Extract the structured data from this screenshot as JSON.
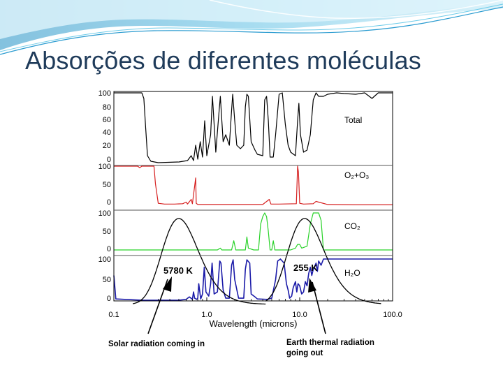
{
  "slide": {
    "title": "Absorções de diferentes moléculas"
  },
  "colors": {
    "title": "#1f3b5a",
    "total": "#000000",
    "o2o3": "#d62020",
    "co2": "#28d228",
    "h2o": "#1a1aa8",
    "blackbody": "#000000"
  },
  "chart_data": {
    "type": "line",
    "x_scale": "log",
    "xlim": [
      0.1,
      100.0
    ],
    "x_ticks": [
      "0.1",
      "1.0",
      "10.0",
      "100.0"
    ],
    "xlabel": "Wavelength (microns)",
    "panels": [
      {
        "key": "total",
        "label": "Total",
        "yticks": [
          "100",
          "80",
          "60",
          "40",
          "20",
          "0"
        ],
        "ylim": [
          0,
          100
        ],
        "points": [
          [
            0.1,
            100
          ],
          [
            0.18,
            100
          ],
          [
            0.2,
            100
          ],
          [
            0.21,
            92
          ],
          [
            0.22,
            50
          ],
          [
            0.23,
            10
          ],
          [
            0.25,
            2
          ],
          [
            0.3,
            0
          ],
          [
            0.5,
            1
          ],
          [
            0.62,
            3
          ],
          [
            0.68,
            10
          ],
          [
            0.72,
            3
          ],
          [
            0.76,
            25
          ],
          [
            0.8,
            5
          ],
          [
            0.85,
            30
          ],
          [
            0.9,
            8
          ],
          [
            0.95,
            60
          ],
          [
            1.0,
            10
          ],
          [
            1.1,
            40
          ],
          [
            1.15,
            95
          ],
          [
            1.25,
            15
          ],
          [
            1.35,
            70
          ],
          [
            1.4,
            95
          ],
          [
            1.5,
            30
          ],
          [
            1.6,
            40
          ],
          [
            1.75,
            25
          ],
          [
            1.85,
            75
          ],
          [
            1.9,
            98
          ],
          [
            2.0,
            60
          ],
          [
            2.1,
            25
          ],
          [
            2.3,
            20
          ],
          [
            2.5,
            25
          ],
          [
            2.6,
            80
          ],
          [
            2.7,
            98
          ],
          [
            2.8,
            95
          ],
          [
            3.0,
            30
          ],
          [
            3.3,
            18
          ],
          [
            3.5,
            12
          ],
          [
            4.0,
            10
          ],
          [
            4.2,
            90
          ],
          [
            4.4,
            95
          ],
          [
            4.6,
            60
          ],
          [
            4.8,
            8
          ],
          [
            5.2,
            8
          ],
          [
            5.5,
            40
          ],
          [
            6.0,
            98
          ],
          [
            6.5,
            100
          ],
          [
            7.0,
            55
          ],
          [
            7.5,
            25
          ],
          [
            8.0,
            15
          ],
          [
            9.0,
            10
          ],
          [
            9.5,
            60
          ],
          [
            9.8,
            85
          ],
          [
            10.2,
            40
          ],
          [
            11.0,
            15
          ],
          [
            12.0,
            18
          ],
          [
            13.0,
            40
          ],
          [
            14.0,
            90
          ],
          [
            15.0,
            100
          ],
          [
            16.0,
            95
          ],
          [
            18.0,
            95
          ],
          [
            20.0,
            98
          ],
          [
            25.0,
            100
          ],
          [
            30.0,
            99
          ],
          [
            40.0,
            98
          ],
          [
            50.0,
            100
          ],
          [
            60.0,
            92
          ],
          [
            70.0,
            100
          ],
          [
            100.0,
            100
          ]
        ]
      },
      {
        "key": "o2o3",
        "label": "O₂+O₃",
        "yticks": [
          "100",
          "50",
          "0"
        ],
        "ylim": [
          0,
          100
        ],
        "points": [
          [
            0.1,
            100
          ],
          [
            0.18,
            100
          ],
          [
            0.19,
            96
          ],
          [
            0.2,
            100
          ],
          [
            0.27,
            100
          ],
          [
            0.28,
            55
          ],
          [
            0.3,
            5
          ],
          [
            0.35,
            3
          ],
          [
            0.45,
            3
          ],
          [
            0.55,
            4
          ],
          [
            0.6,
            8
          ],
          [
            0.62,
            3
          ],
          [
            0.68,
            15
          ],
          [
            0.7,
            4
          ],
          [
            0.76,
            70
          ],
          [
            0.77,
            5
          ],
          [
            0.8,
            2
          ],
          [
            2.0,
            2
          ],
          [
            4.0,
            2
          ],
          [
            4.7,
            15
          ],
          [
            4.9,
            3
          ],
          [
            6.0,
            3
          ],
          [
            9.2,
            4
          ],
          [
            9.5,
            100
          ],
          [
            9.7,
            85
          ],
          [
            10.0,
            5
          ],
          [
            11.0,
            3
          ],
          [
            14.0,
            4
          ],
          [
            15.0,
            10
          ],
          [
            16.0,
            8
          ],
          [
            20.0,
            2
          ],
          [
            40.0,
            1
          ],
          [
            100.0,
            1
          ]
        ]
      },
      {
        "key": "co2",
        "label": "CO₂",
        "yticks": [
          "100",
          "50",
          "0"
        ],
        "ylim": [
          0,
          100
        ],
        "points": [
          [
            0.1,
            0
          ],
          [
            1.3,
            0
          ],
          [
            1.4,
            5
          ],
          [
            1.45,
            0
          ],
          [
            1.85,
            0
          ],
          [
            1.95,
            25
          ],
          [
            2.05,
            0
          ],
          [
            2.6,
            0
          ],
          [
            2.7,
            35
          ],
          [
            2.8,
            5
          ],
          [
            3.2,
            0
          ],
          [
            3.6,
            0
          ],
          [
            3.8,
            70
          ],
          [
            4.0,
            90
          ],
          [
            4.2,
            100
          ],
          [
            4.4,
            90
          ],
          [
            4.6,
            50
          ],
          [
            4.8,
            0
          ],
          [
            5.0,
            0
          ],
          [
            5.2,
            25
          ],
          [
            5.4,
            0
          ],
          [
            7.0,
            0
          ],
          [
            8.0,
            0
          ],
          [
            9.0,
            5
          ],
          [
            9.5,
            15
          ],
          [
            10.0,
            15
          ],
          [
            10.5,
            5
          ],
          [
            12.0,
            10
          ],
          [
            13.0,
            70
          ],
          [
            14.0,
            100
          ],
          [
            15.0,
            100
          ],
          [
            16.0,
            100
          ],
          [
            17.0,
            80
          ],
          [
            18.0,
            0
          ],
          [
            100.0,
            0
          ]
        ]
      },
      {
        "key": "h2o",
        "label": "H₂O",
        "yticks": [
          "100",
          "50",
          "0"
        ],
        "ylim": [
          0,
          100
        ],
        "points": [
          [
            0.1,
            60
          ],
          [
            0.105,
            3
          ],
          [
            0.2,
            0
          ],
          [
            0.5,
            0
          ],
          [
            0.6,
            2
          ],
          [
            0.65,
            8
          ],
          [
            0.7,
            2
          ],
          [
            0.72,
            20
          ],
          [
            0.74,
            5
          ],
          [
            0.78,
            2
          ],
          [
            0.8,
            5
          ],
          [
            0.82,
            40
          ],
          [
            0.86,
            3
          ],
          [
            0.9,
            15
          ],
          [
            0.94,
            80
          ],
          [
            0.98,
            20
          ],
          [
            1.05,
            10
          ],
          [
            1.1,
            40
          ],
          [
            1.14,
            90
          ],
          [
            1.2,
            15
          ],
          [
            1.3,
            20
          ],
          [
            1.38,
            95
          ],
          [
            1.42,
            90
          ],
          [
            1.5,
            25
          ],
          [
            1.6,
            5
          ],
          [
            1.75,
            5
          ],
          [
            1.85,
            85
          ],
          [
            1.92,
            98
          ],
          [
            2.0,
            50
          ],
          [
            2.2,
            5
          ],
          [
            2.5,
            5
          ],
          [
            2.6,
            75
          ],
          [
            2.7,
            98
          ],
          [
            2.9,
            90
          ],
          [
            3.0,
            15
          ],
          [
            3.3,
            8
          ],
          [
            3.5,
            3
          ],
          [
            4.5,
            2
          ],
          [
            5.0,
            5
          ],
          [
            5.5,
            50
          ],
          [
            5.8,
            95
          ],
          [
            6.2,
            100
          ],
          [
            6.8,
            90
          ],
          [
            7.2,
            40
          ],
          [
            7.5,
            25
          ],
          [
            7.8,
            5
          ],
          [
            8.2,
            10
          ],
          [
            8.5,
            30
          ],
          [
            9.0,
            45
          ],
          [
            9.3,
            20
          ],
          [
            9.6,
            40
          ],
          [
            10.0,
            35
          ],
          [
            10.5,
            15
          ],
          [
            11.0,
            20
          ],
          [
            11.5,
            45
          ],
          [
            12.0,
            35
          ],
          [
            12.5,
            65
          ],
          [
            13.0,
            80
          ],
          [
            13.5,
            60
          ],
          [
            14.0,
            75
          ],
          [
            15.0,
            90
          ],
          [
            15.5,
            70
          ],
          [
            16.0,
            95
          ],
          [
            17.0,
            85
          ],
          [
            18.0,
            100
          ],
          [
            20.0,
            100
          ],
          [
            25.0,
            100
          ],
          [
            40.0,
            100
          ],
          [
            100.0,
            100
          ]
        ]
      }
    ],
    "blackbody": [
      {
        "label": "5780 K",
        "peak": 0.5
      },
      {
        "label": "255 K",
        "peak": 11.3
      }
    ],
    "annotations": [
      {
        "key": "solar",
        "text": [
          "Solar radiation coming in"
        ]
      },
      {
        "key": "earth",
        "text": [
          "Earth thermal radiation",
          "going out"
        ]
      }
    ]
  }
}
